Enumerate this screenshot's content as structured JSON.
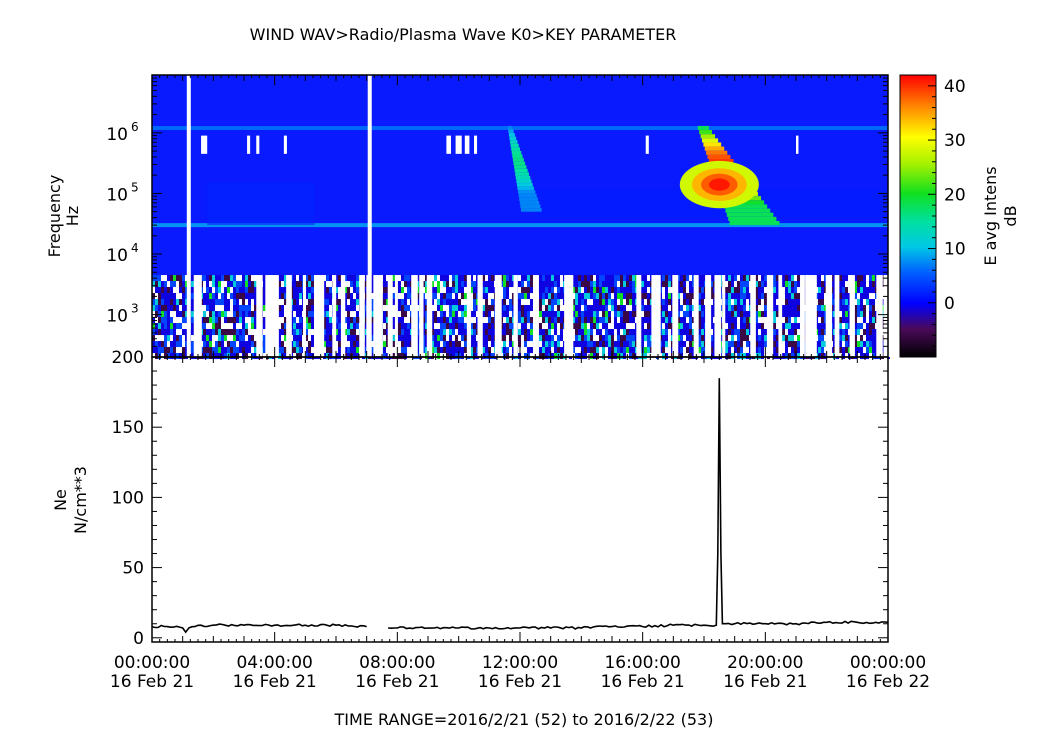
{
  "title": "WIND  WAV>Radio/Plasma Wave  K0>KEY PARAMETER",
  "footer": "TIME RANGE=2016/2/21 (52) to 2016/2/22 (53)",
  "chart_data": [
    {
      "type": "heatmap",
      "ylabel": "Frequency",
      "yunit": "Hz",
      "yscale": "log",
      "ylim": [
        200,
        9000000
      ],
      "yticks": [
        {
          "base": "10",
          "exp": "3",
          "value": 1000
        },
        {
          "base": "10",
          "exp": "4",
          "value": 10000
        },
        {
          "base": "10",
          "exp": "5",
          "value": 100000
        },
        {
          "base": "10",
          "exp": "6",
          "value": 1000000
        }
      ],
      "xlim_hours": [
        0,
        24
      ],
      "colorbar": {
        "label": "E avg Intens",
        "unit": "dB",
        "range": [
          -10,
          42
        ],
        "ticks": [
          "0",
          "10",
          "20",
          "30",
          "40"
        ],
        "tick_values": [
          0,
          10,
          20,
          30,
          40
        ]
      },
      "features": [
        {
          "name": "type III burst",
          "t_start_hours": 11.6,
          "t_end_hours": 12.6,
          "f_high": 1300000,
          "f_low": 50000,
          "peak_db": 16
        },
        {
          "name": "type III burst",
          "t_start_hours": 17.8,
          "t_end_hours": 20.2,
          "f_high": 1300000,
          "f_low": 30000,
          "peak_db": 40
        },
        {
          "name": "constant emission line",
          "f": 30000,
          "level_db": 8
        },
        {
          "name": "constant emission line",
          "f": 1200000,
          "level_db": 6
        }
      ],
      "data_gaps_hours": [
        1.2,
        7.1
      ]
    },
    {
      "type": "line",
      "ylabel": "Ne",
      "yunit": "N/cm**3",
      "ylim": [
        -3,
        200
      ],
      "yticks": [
        0,
        50,
        100,
        150,
        200
      ],
      "ytick_labels": [
        "0",
        "50",
        "100",
        "150",
        "200"
      ],
      "xlim_hours": [
        0,
        24
      ],
      "series": [
        {
          "x_hours": [
            0,
            0.5,
            1.0,
            1.1,
            1.2,
            1.4,
            2,
            3,
            4,
            5,
            6,
            7.0,
            7.7,
            8,
            9,
            10,
            11,
            12,
            13,
            14,
            15,
            16,
            17,
            18.0,
            18.4,
            18.45,
            18.5,
            18.55,
            18.6,
            18.7,
            19,
            20,
            21,
            22,
            23,
            24
          ],
          "values": [
            8,
            8,
            7,
            4,
            7,
            8,
            9,
            9,
            9,
            9,
            9,
            8,
            7,
            7,
            7,
            7,
            7,
            7,
            7,
            7,
            8,
            8,
            9,
            9,
            9,
            60,
            185,
            60,
            10,
            10,
            10,
            10,
            10,
            11,
            11,
            11
          ]
        }
      ],
      "gaps_hours": [
        [
          7.0,
          7.7
        ]
      ]
    }
  ],
  "xticks": [
    {
      "time": "00:00:00",
      "date": "16 Feb 21",
      "hour": 0
    },
    {
      "time": "04:00:00",
      "date": "16 Feb 21",
      "hour": 4
    },
    {
      "time": "08:00:00",
      "date": "16 Feb 21",
      "hour": 8
    },
    {
      "time": "12:00:00",
      "date": "16 Feb 21",
      "hour": 12
    },
    {
      "time": "16:00:00",
      "date": "16 Feb 21",
      "hour": 16
    },
    {
      "time": "20:00:00",
      "date": "16 Feb 21",
      "hour": 20
    },
    {
      "time": "00:00:00",
      "date": "16 Feb 22",
      "hour": 24
    }
  ]
}
